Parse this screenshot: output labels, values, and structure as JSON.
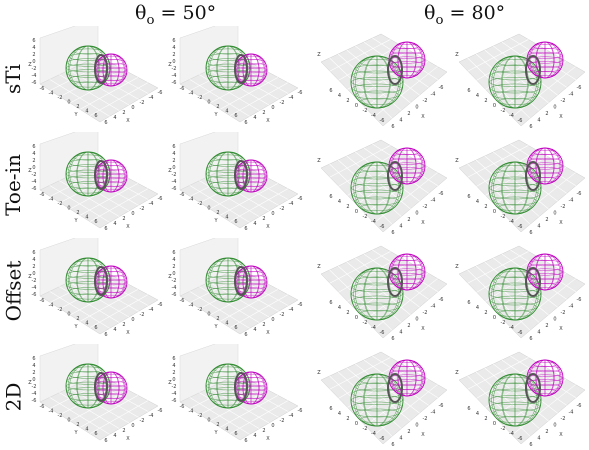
{
  "columns": [
    {
      "theta_symbol": "θ",
      "theta_sub": "o",
      "theta_value": "= 50°"
    },
    {
      "theta_symbol": "θ",
      "theta_sub": "o",
      "theta_value": "= 80°"
    }
  ],
  "rows": [
    "sTi",
    "Toe-in",
    "Offset",
    "2D"
  ],
  "panel_views": [
    "50",
    "50",
    "80",
    "80"
  ],
  "axis_ticks_50": {
    "left": [
      "6",
      "4",
      "2",
      "0",
      "-2",
      "-4",
      "-6"
    ],
    "front_y": [
      "-6",
      "-4",
      "-2",
      "0",
      "2",
      "4",
      "6"
    ],
    "front_x": [
      "6",
      "4",
      "2",
      "0",
      "-2",
      "-4",
      "-6"
    ],
    "y_letter": "Y",
    "x_letter": "X",
    "z_letter": "Z"
  },
  "axis_ticks_80": {
    "front_y": [
      "6",
      "4",
      "2",
      "0",
      "-2",
      "-4",
      "-6"
    ],
    "front_x": [
      "6",
      "4",
      "2",
      "0",
      "-2",
      "-4",
      "-6"
    ],
    "x_letter": "X",
    "z_letter": "Z"
  },
  "colors": {
    "green_sphere": "#2e8b2e",
    "magenta_sphere": "#c000c0",
    "overlap": "#555555",
    "pane": "#eaeaea",
    "pane_grid": "#ffffff"
  }
}
